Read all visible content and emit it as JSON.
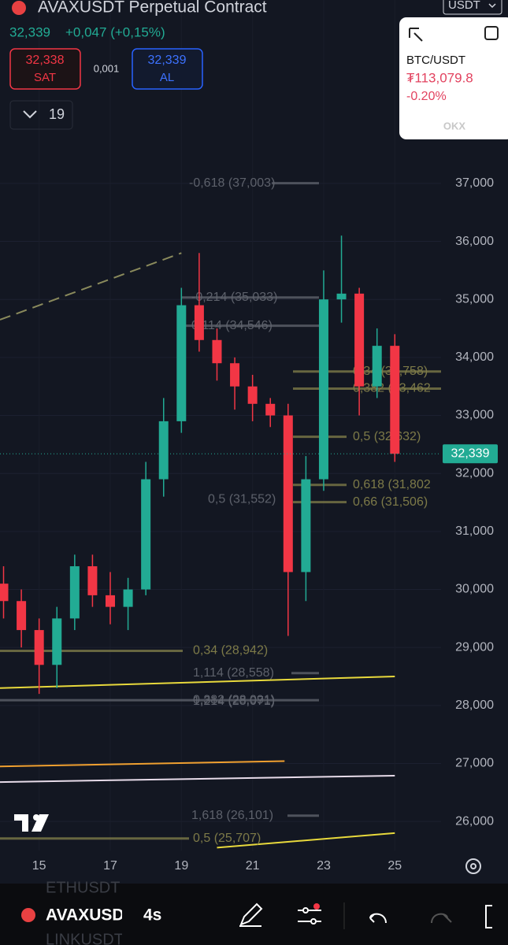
{
  "header": {
    "title": "AVAXUSDT Perpetual Contract",
    "price": "32,339",
    "change": "+0,047 (+0,15%)",
    "currency": "USDT"
  },
  "order": {
    "sell_price": "32,338",
    "sell_label": "SAT",
    "quantity": "0,001",
    "buy_price": "32,339",
    "buy_label": "AL",
    "leverage": "19"
  },
  "widget": {
    "pair": "BTC/USDT",
    "price": "₮113,079.8",
    "change": "-0.20%",
    "brand": "OKX"
  },
  "chart_data": {
    "type": "candlestick",
    "x": [
      14,
      14.5,
      15,
      15.5,
      16,
      16.5,
      17,
      17.5,
      18,
      18.5,
      19,
      19.5,
      20,
      20.5,
      21,
      21.5,
      22,
      22.5,
      23,
      23.5,
      24,
      24.5,
      25
    ],
    "open": [
      30100,
      29800,
      29300,
      28700,
      29500,
      30400,
      29900,
      29700,
      30000,
      31900,
      32900,
      34900,
      34300,
      33900,
      33500,
      33200,
      33000,
      30300,
      31900,
      35000,
      35100,
      33500,
      34200
    ],
    "high": [
      30400,
      30000,
      29500,
      29700,
      30600,
      30600,
      30300,
      30200,
      32200,
      33300,
      35200,
      35800,
      34500,
      34000,
      33700,
      33300,
      33200,
      32300,
      35500,
      36100,
      35200,
      34500,
      34400
    ],
    "low": [
      29500,
      29000,
      28200,
      28300,
      29300,
      29700,
      29400,
      29300,
      29900,
      31600,
      32700,
      34100,
      33600,
      33100,
      32900,
      32800,
      29200,
      29800,
      31700,
      34600,
      33000,
      33300,
      32200
    ],
    "close": [
      29800,
      29300,
      28700,
      29500,
      30400,
      29900,
      29700,
      30000,
      31900,
      32900,
      34900,
      34300,
      33900,
      33500,
      33200,
      33000,
      30300,
      31900,
      35000,
      35100,
      33500,
      34200,
      32339
    ],
    "up_color": "#22ab94",
    "down_color": "#f23645",
    "xlim": [
      13.9,
      26.3
    ],
    "xticks": [
      15,
      17,
      19,
      21,
      23,
      25
    ],
    "ylim": [
      25500,
      37650
    ],
    "yticks": [
      {
        "value": 26000,
        "label": "26,000"
      },
      {
        "value": 27000,
        "label": "27,000"
      },
      {
        "value": 28000,
        "label": "28,000"
      },
      {
        "value": 29000,
        "label": "29,000"
      },
      {
        "value": 30000,
        "label": "30,000"
      },
      {
        "value": 31000,
        "label": "31,000"
      },
      {
        "value": 32000,
        "label": "32,000"
      },
      {
        "value": 33000,
        "label": "33,000"
      },
      {
        "value": 34000,
        "label": "34,000"
      },
      {
        "value": 35000,
        "label": "35,000"
      },
      {
        "value": 36000,
        "label": "36,000"
      },
      {
        "value": 37000,
        "label": "37,000"
      }
    ],
    "grid": true,
    "last_price": {
      "value": 32339,
      "label": "32,339",
      "color": "#22ab94"
    },
    "fib_levels": [
      {
        "label": "-0,618 (37,003)",
        "value": 37003,
        "color": "#5d616b"
      },
      {
        "label": "-0,214 (35,033)",
        "value": 35033,
        "color": "#5d616b"
      },
      {
        "label": "0,114 (34,546)",
        "value": 34546,
        "color": "#5d616b"
      },
      {
        "label": "0,34 (33,758)",
        "value": 33758,
        "color": "#7d7a48"
      },
      {
        "label": "0,382 (33,462",
        "value": 33462,
        "color": "#7d7a48"
      },
      {
        "label": "0,5 (32,632)",
        "value": 32632,
        "color": "#7d7a48"
      },
      {
        "label": "0,618 (31,802",
        "value": 31802,
        "color": "#7d7a48"
      },
      {
        "label": "0,66 (31,506)",
        "value": 31506,
        "color": "#7d7a48"
      },
      {
        "label": "0,5 (31,552)",
        "value": 31552,
        "color": "#5d616b"
      },
      {
        "label": "0,34 (28,942)",
        "value": 28942,
        "color": "#7d7a48"
      },
      {
        "label": "1,114 (28,558)",
        "value": 28558,
        "color": "#5d616b"
      },
      {
        "label": "0,382 (28,091)",
        "value": 28091,
        "color": "#5d616b"
      },
      {
        "label": "1,214 (28,071)",
        "value": 28071,
        "color": "#5d616b"
      },
      {
        "label": "1,618 (26,101)",
        "value": 26101,
        "color": "#5d616b"
      },
      {
        "label": "0,5 (25,707)",
        "value": 25707,
        "color": "#7d7a48"
      }
    ],
    "indicators": [
      {
        "color": "#e8d93c",
        "x": [
          13.9,
          25
        ],
        "values": [
          28300,
          28500
        ]
      },
      {
        "color": "#f0a030",
        "x": [
          13.9,
          21.9
        ],
        "values": [
          26950,
          27040
        ]
      },
      {
        "color": "#e8dcea",
        "x": [
          13.9,
          25
        ],
        "values": [
          26680,
          26790
        ]
      },
      {
        "color": "#e8d93c",
        "x": [
          20,
          25
        ],
        "values": [
          25550,
          25800
        ]
      }
    ],
    "trendline": {
      "color": "#8a8a5c",
      "x": [
        13.9,
        19
      ],
      "values": [
        34650,
        35800
      ]
    }
  },
  "toolbar": {
    "symbol": "AVAXUSDT",
    "symbol_above": "ETHUSDT",
    "symbol_below": "LINKUSDT",
    "interval": "4s"
  }
}
